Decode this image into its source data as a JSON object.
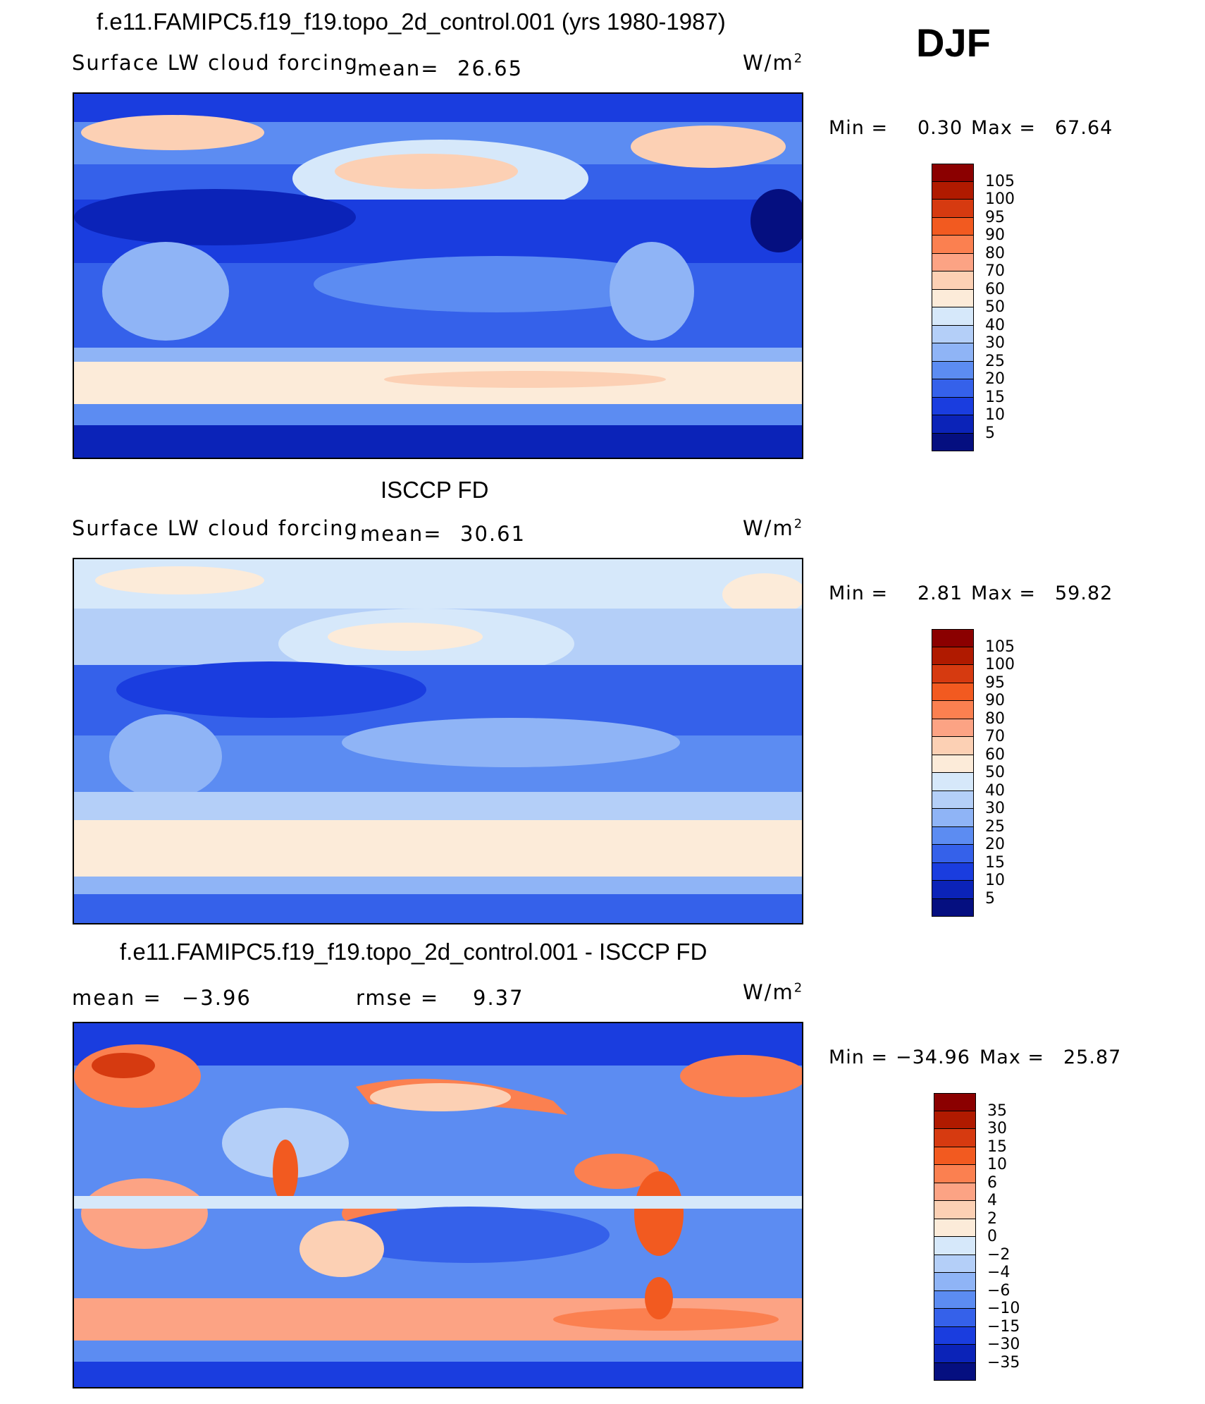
{
  "season": "DJF",
  "units_label": "W/m",
  "units_sup": "2",
  "panels": [
    {
      "title": "f.e11.FAMIPC5.f19_f19.topo_2d_control.001 (yrs 1980-1987)",
      "variable": "Surface LW cloud forcing",
      "stat1_label": "mean=",
      "stat1_value": "26.65",
      "min_label": "Min =",
      "min_value": "0.30",
      "max_label": "Max =",
      "max_value": "67.64"
    },
    {
      "title": "ISCCP FD",
      "variable": "Surface LW cloud forcing",
      "stat1_label": "mean=",
      "stat1_value": "30.61",
      "min_label": "Min =",
      "min_value": "2.81",
      "max_label": "Max =",
      "max_value": "59.82"
    },
    {
      "title": "f.e11.FAMIPC5.f19_f19.topo_2d_control.001 - ISCCP FD",
      "stat1_label": "mean =",
      "stat1_value": "−3.96",
      "stat2_label": "rmse =",
      "stat2_value": "9.37",
      "min_label": "Min =",
      "min_value": "−34.96",
      "max_label": "Max =",
      "max_value": "25.87"
    }
  ],
  "chart_data": [
    {
      "type": "heatmap",
      "title": "f.e11.FAMIPC5.f19_f19.topo_2d_control.001 (yrs 1980-1987)",
      "field": "Surface LW cloud forcing",
      "units": "W/m2",
      "mean": 26.65,
      "min": 0.3,
      "max": 67.64,
      "colorbar_levels": [
        "105",
        "100",
        "95",
        "90",
        "80",
        "70",
        "60",
        "50",
        "40",
        "30",
        "25",
        "20",
        "15",
        "10",
        "5"
      ],
      "colorbar_colors": [
        "#8b0000",
        "#b01a00",
        "#d63a10",
        "#f25a20",
        "#fb8050",
        "#fca384",
        "#fcd0b4",
        "#fcebd9",
        "#d6e8fa",
        "#b4cff8",
        "#8fb4f6",
        "#5c8cf2",
        "#3561ea",
        "#1a3ddf",
        "#0b23b8",
        "#050f80"
      ]
    },
    {
      "type": "heatmap",
      "title": "ISCCP FD",
      "field": "Surface LW cloud forcing",
      "units": "W/m2",
      "mean": 30.61,
      "min": 2.81,
      "max": 59.82,
      "colorbar_levels": [
        "105",
        "100",
        "95",
        "90",
        "80",
        "70",
        "60",
        "50",
        "40",
        "30",
        "25",
        "20",
        "15",
        "10",
        "5"
      ],
      "colorbar_colors": [
        "#8b0000",
        "#b01a00",
        "#d63a10",
        "#f25a20",
        "#fb8050",
        "#fca384",
        "#fcd0b4",
        "#fcebd9",
        "#d6e8fa",
        "#b4cff8",
        "#8fb4f6",
        "#5c8cf2",
        "#3561ea",
        "#1a3ddf",
        "#0b23b8",
        "#050f80"
      ]
    },
    {
      "type": "heatmap",
      "title": "f.e11.FAMIPC5.f19_f19.topo_2d_control.001 - ISCCP FD",
      "units": "W/m2",
      "mean": -3.96,
      "rmse": 9.37,
      "min": -34.96,
      "max": 25.87,
      "colorbar_levels": [
        "35",
        "30",
        "15",
        "10",
        "6",
        "4",
        "2",
        "0",
        "−2",
        "−4",
        "−6",
        "−10",
        "−15",
        "−30",
        "−35"
      ],
      "colorbar_colors": [
        "#8b0000",
        "#b01a00",
        "#d63a10",
        "#f25a20",
        "#fb8050",
        "#fca384",
        "#fcd0b4",
        "#fcebd9",
        "#d6e8fa",
        "#b4cff8",
        "#8fb4f6",
        "#5c8cf2",
        "#3561ea",
        "#1a3ddf",
        "#0b23b8",
        "#050f80"
      ]
    }
  ]
}
